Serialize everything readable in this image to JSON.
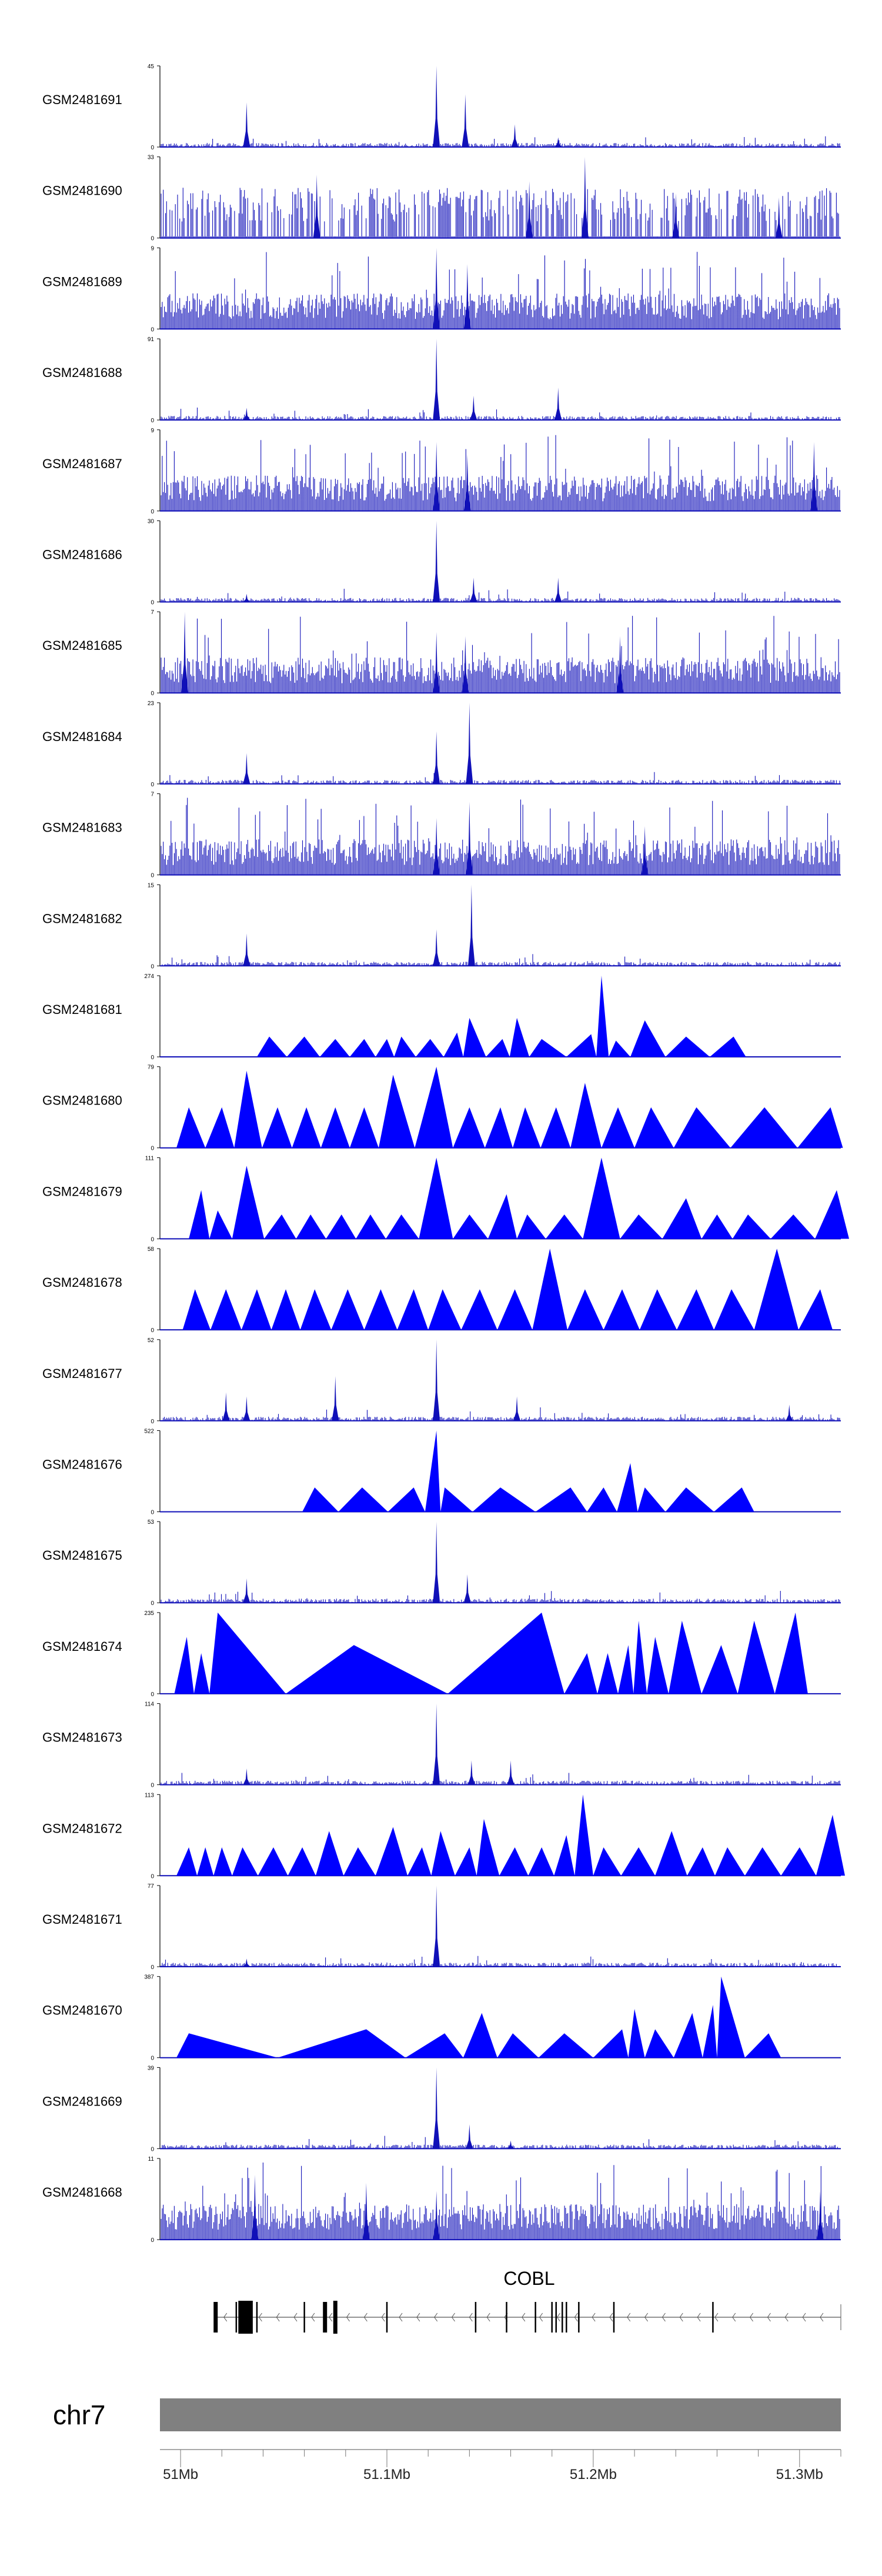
{
  "chart_data": {
    "type": "genome-track",
    "genome": {
      "chromosome": "chr7",
      "region_start_mb": 50.99,
      "region_end_mb": 51.32,
      "axis_ticks": [
        {
          "value": 51.0,
          "label": "51Mb"
        },
        {
          "value": 51.1,
          "label": "51.1Mb"
        },
        {
          "value": 51.2,
          "label": "51.2Mb"
        },
        {
          "value": 51.3,
          "label": "51.3Mb"
        }
      ],
      "gene": {
        "name": "COBL",
        "strand": "-",
        "start_mb": 51.017,
        "end_mb": 51.317,
        "exons_mb": [
          51.017,
          51.027,
          51.029,
          51.03,
          51.031,
          51.033,
          51.037,
          51.06,
          51.07,
          51.075,
          51.1,
          51.143,
          51.158,
          51.172,
          51.18,
          51.182,
          51.185,
          51.187,
          51.193,
          51.21,
          51.258
        ]
      }
    },
    "tracks": [
      {
        "sample": "GSM2481691",
        "ymax": "45",
        "ymax_value": 45,
        "style": "dense",
        "peaks": [
          [
            51.032,
            0.55
          ],
          [
            51.124,
            1.0
          ],
          [
            51.138,
            0.65
          ],
          [
            51.162,
            0.28
          ],
          [
            51.183,
            0.12
          ]
        ]
      },
      {
        "sample": "GSM2481690",
        "ymax": "33",
        "ymax_value": 33,
        "style": "sparse-dense",
        "peaks": [
          [
            51.066,
            0.78
          ],
          [
            51.169,
            0.7
          ],
          [
            51.196,
            1.0
          ],
          [
            51.24,
            0.55
          ],
          [
            51.29,
            0.5
          ]
        ]
      },
      {
        "sample": "GSM2481689",
        "ymax": "9",
        "ymax_value": 9,
        "style": "noise",
        "peaks": [
          [
            51.124,
            1.0
          ],
          [
            51.139,
            0.8
          ]
        ]
      },
      {
        "sample": "GSM2481688",
        "ymax": "91",
        "ymax_value": 91,
        "style": "dense",
        "peaks": [
          [
            51.124,
            1.0
          ],
          [
            51.142,
            0.3
          ],
          [
            51.183,
            0.4
          ],
          [
            51.032,
            0.15
          ]
        ]
      },
      {
        "sample": "GSM2481687",
        "ymax": "9",
        "ymax_value": 9,
        "style": "noise",
        "peaks": [
          [
            51.124,
            0.85
          ],
          [
            51.139,
            0.7
          ],
          [
            51.307,
            0.85
          ]
        ]
      },
      {
        "sample": "GSM2481686",
        "ymax": "30",
        "ymax_value": 30,
        "style": "dense",
        "peaks": [
          [
            51.124,
            1.0
          ],
          [
            51.142,
            0.3
          ],
          [
            51.183,
            0.3
          ],
          [
            51.032,
            0.1
          ]
        ]
      },
      {
        "sample": "GSM2481685",
        "ymax": "7",
        "ymax_value": 7,
        "style": "noise",
        "peaks": [
          [
            51.002,
            1.0
          ],
          [
            51.124,
            0.75
          ],
          [
            51.138,
            0.7
          ],
          [
            51.213,
            0.7
          ]
        ]
      },
      {
        "sample": "GSM2481684",
        "ymax": "23",
        "ymax_value": 23,
        "style": "dense",
        "peaks": [
          [
            51.032,
            0.38
          ],
          [
            51.124,
            0.65
          ],
          [
            51.14,
            1.0
          ]
        ]
      },
      {
        "sample": "GSM2481683",
        "ymax": "7",
        "ymax_value": 7,
        "style": "noise",
        "peaks": [
          [
            51.124,
            0.7
          ],
          [
            51.14,
            0.9
          ],
          [
            51.225,
            0.6
          ]
        ]
      },
      {
        "sample": "GSM2481682",
        "ymax": "15",
        "ymax_value": 15,
        "style": "dense",
        "peaks": [
          [
            51.032,
            0.4
          ],
          [
            51.124,
            0.45
          ],
          [
            51.141,
            1.0
          ]
        ]
      },
      {
        "sample": "GSM2481681",
        "ymax": "274",
        "ymax_value": 274,
        "style": "triangles",
        "peaks": [
          [
            51.043,
            0.25
          ],
          [
            51.06,
            0.25
          ],
          [
            51.075,
            0.22
          ],
          [
            51.089,
            0.22
          ],
          [
            51.1,
            0.22
          ],
          [
            51.107,
            0.25
          ],
          [
            51.121,
            0.22
          ],
          [
            51.134,
            0.3
          ],
          [
            51.14,
            0.48
          ],
          [
            51.156,
            0.22
          ],
          [
            51.163,
            0.48
          ],
          [
            51.175,
            0.22
          ],
          [
            51.199,
            0.28
          ],
          [
            51.204,
            1.0
          ],
          [
            51.211,
            0.2
          ],
          [
            51.225,
            0.45
          ],
          [
            51.245,
            0.25
          ],
          [
            51.268,
            0.25
          ]
        ]
      },
      {
        "sample": "GSM2481680",
        "ymax": "79",
        "ymax_value": 79,
        "style": "triangles",
        "peaks": [
          [
            51.004,
            0.5
          ],
          [
            51.02,
            0.5
          ],
          [
            51.032,
            0.95
          ],
          [
            51.047,
            0.5
          ],
          [
            51.061,
            0.5
          ],
          [
            51.075,
            0.5
          ],
          [
            51.089,
            0.5
          ],
          [
            51.103,
            0.9
          ],
          [
            51.124,
            1.0
          ],
          [
            51.14,
            0.5
          ],
          [
            51.155,
            0.5
          ],
          [
            51.167,
            0.5
          ],
          [
            51.182,
            0.5
          ],
          [
            51.196,
            0.8
          ],
          [
            51.212,
            0.5
          ],
          [
            51.228,
            0.5
          ],
          [
            51.25,
            0.5
          ],
          [
            51.283,
            0.5
          ],
          [
            51.315,
            0.5
          ]
        ]
      },
      {
        "sample": "GSM2481679",
        "ymax": "111",
        "ymax_value": 111,
        "style": "triangles",
        "peaks": [
          [
            51.01,
            0.6
          ],
          [
            51.018,
            0.35
          ],
          [
            51.032,
            0.9
          ],
          [
            51.049,
            0.3
          ],
          [
            51.063,
            0.3
          ],
          [
            51.078,
            0.3
          ],
          [
            51.092,
            0.3
          ],
          [
            51.107,
            0.3
          ],
          [
            51.124,
            1.0
          ],
          [
            51.14,
            0.3
          ],
          [
            51.158,
            0.55
          ],
          [
            51.168,
            0.3
          ],
          [
            51.186,
            0.3
          ],
          [
            51.204,
            1.0
          ],
          [
            51.222,
            0.3
          ],
          [
            51.245,
            0.5
          ],
          [
            51.26,
            0.3
          ],
          [
            51.275,
            0.3
          ],
          [
            51.297,
            0.3
          ],
          [
            51.318,
            0.6
          ]
        ]
      },
      {
        "sample": "GSM2481678",
        "ymax": "58",
        "ymax_value": 58,
        "style": "triangles",
        "peaks": [
          [
            51.007,
            0.5
          ],
          [
            51.022,
            0.5
          ],
          [
            51.037,
            0.5
          ],
          [
            51.051,
            0.5
          ],
          [
            51.065,
            0.5
          ],
          [
            51.081,
            0.5
          ],
          [
            51.097,
            0.5
          ],
          [
            51.113,
            0.5
          ],
          [
            51.127,
            0.5
          ],
          [
            51.145,
            0.5
          ],
          [
            51.162,
            0.5
          ],
          [
            51.179,
            1.0
          ],
          [
            51.196,
            0.5
          ],
          [
            51.214,
            0.5
          ],
          [
            51.231,
            0.5
          ],
          [
            51.25,
            0.5
          ],
          [
            51.267,
            0.5
          ],
          [
            51.289,
            1.0
          ],
          [
            51.31,
            0.5
          ]
        ]
      },
      {
        "sample": "GSM2481677",
        "ymax": "52",
        "ymax_value": 52,
        "style": "dense",
        "peaks": [
          [
            51.022,
            0.35
          ],
          [
            51.032,
            0.3
          ],
          [
            51.075,
            0.55
          ],
          [
            51.124,
            1.0
          ],
          [
            51.163,
            0.3
          ],
          [
            51.295,
            0.2
          ]
        ]
      },
      {
        "sample": "GSM2481676",
        "ymax": "522",
        "ymax_value": 522,
        "style": "triangles",
        "peaks": [
          [
            51.065,
            0.3
          ],
          [
            51.088,
            0.3
          ],
          [
            51.113,
            0.3
          ],
          [
            51.124,
            1.0
          ],
          [
            51.128,
            0.3
          ],
          [
            51.155,
            0.3
          ],
          [
            51.189,
            0.3
          ],
          [
            51.205,
            0.3
          ],
          [
            51.218,
            0.6
          ],
          [
            51.225,
            0.3
          ],
          [
            51.245,
            0.3
          ],
          [
            51.272,
            0.3
          ]
        ]
      },
      {
        "sample": "GSM2481675",
        "ymax": "53",
        "ymax_value": 53,
        "style": "dense",
        "peaks": [
          [
            51.032,
            0.3
          ],
          [
            51.124,
            1.0
          ],
          [
            51.139,
            0.35
          ]
        ]
      },
      {
        "sample": "GSM2481674",
        "ymax": "235",
        "ymax_value": 235,
        "style": "triangles",
        "peaks": [
          [
            51.003,
            0.7
          ],
          [
            51.01,
            0.5
          ],
          [
            51.018,
            1.0
          ],
          [
            51.084,
            0.6
          ],
          [
            51.175,
            1.0
          ],
          [
            51.197,
            0.5
          ],
          [
            51.207,
            0.5
          ],
          [
            51.217,
            0.6
          ],
          [
            51.222,
            0.9
          ],
          [
            51.23,
            0.7
          ],
          [
            51.243,
            0.9
          ],
          [
            51.262,
            0.6
          ],
          [
            51.278,
            0.9
          ],
          [
            51.298,
            1.0
          ]
        ]
      },
      {
        "sample": "GSM2481673",
        "ymax": "114",
        "ymax_value": 114,
        "style": "dense",
        "peaks": [
          [
            51.032,
            0.2
          ],
          [
            51.124,
            1.0
          ],
          [
            51.141,
            0.3
          ],
          [
            51.16,
            0.3
          ]
        ]
      },
      {
        "sample": "GSM2481672",
        "ymax": "113",
        "ymax_value": 113,
        "style": "triangles",
        "peaks": [
          [
            51.004,
            0.35
          ],
          [
            51.012,
            0.35
          ],
          [
            51.02,
            0.35
          ],
          [
            51.03,
            0.35
          ],
          [
            51.045,
            0.35
          ],
          [
            51.059,
            0.35
          ],
          [
            51.072,
            0.55
          ],
          [
            51.086,
            0.35
          ],
          [
            51.103,
            0.6
          ],
          [
            51.117,
            0.35
          ],
          [
            51.126,
            0.55
          ],
          [
            51.14,
            0.35
          ],
          [
            51.147,
            0.7
          ],
          [
            51.162,
            0.35
          ],
          [
            51.175,
            0.35
          ],
          [
            51.187,
            0.5
          ],
          [
            51.195,
            1.0
          ],
          [
            51.205,
            0.35
          ],
          [
            51.222,
            0.35
          ],
          [
            51.238,
            0.55
          ],
          [
            51.253,
            0.35
          ],
          [
            51.265,
            0.35
          ],
          [
            51.282,
            0.35
          ],
          [
            51.3,
            0.35
          ],
          [
            51.316,
            0.75
          ]
        ]
      },
      {
        "sample": "GSM2481671",
        "ymax": "77",
        "ymax_value": 77,
        "style": "dense",
        "peaks": [
          [
            51.124,
            1.0
          ],
          [
            51.032,
            0.1
          ]
        ]
      },
      {
        "sample": "GSM2481670",
        "ymax": "387",
        "ymax_value": 387,
        "style": "triangles",
        "peaks": [
          [
            51.004,
            0.3
          ],
          [
            51.09,
            0.35
          ],
          [
            51.128,
            0.3
          ],
          [
            51.146,
            0.55
          ],
          [
            51.161,
            0.3
          ],
          [
            51.186,
            0.3
          ],
          [
            51.214,
            0.35
          ],
          [
            51.22,
            0.6
          ],
          [
            51.23,
            0.35
          ],
          [
            51.248,
            0.55
          ],
          [
            51.258,
            0.65
          ],
          [
            51.262,
            1.0
          ],
          [
            51.285,
            0.3
          ]
        ]
      },
      {
        "sample": "GSM2481669",
        "ymax": "39",
        "ymax_value": 39,
        "style": "dense",
        "peaks": [
          [
            51.124,
            1.0
          ],
          [
            51.14,
            0.3
          ],
          [
            51.16,
            0.1
          ]
        ]
      },
      {
        "sample": "GSM2481668",
        "ymax": "11",
        "ymax_value": 11,
        "style": "noise",
        "peaks": [
          [
            51.036,
            0.8
          ],
          [
            51.09,
            0.7
          ],
          [
            51.124,
            0.6
          ],
          [
            51.31,
            0.6
          ]
        ]
      }
    ]
  }
}
